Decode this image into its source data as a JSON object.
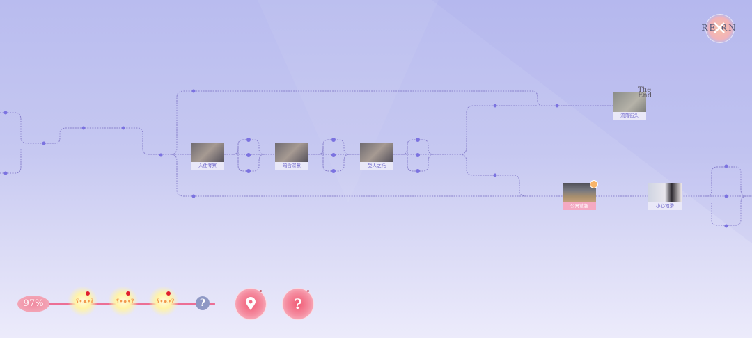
{
  "logo": {
    "text": "RE  RN"
  },
  "nodes": [
    {
      "label": "入住考察",
      "style": "class"
    },
    {
      "label": "暗含深意",
      "style": "class"
    },
    {
      "label": "受人之托",
      "style": "class"
    },
    {
      "label": "流落街头",
      "ending": "The End"
    },
    {
      "label": "公寓谐趣",
      "highlight": true
    },
    {
      "label": "小心地滑"
    }
  ],
  "progress": {
    "percent_text": "97%",
    "value": 97,
    "rewards": [
      "bear",
      "bear",
      "bear"
    ],
    "locked_reward": "?"
  },
  "buttons": {
    "location": "location-pin",
    "hint": "?"
  },
  "colors": {
    "accent": "#ec6f95",
    "node_dot": "#7b72e0",
    "line": "#7a72c8"
  }
}
